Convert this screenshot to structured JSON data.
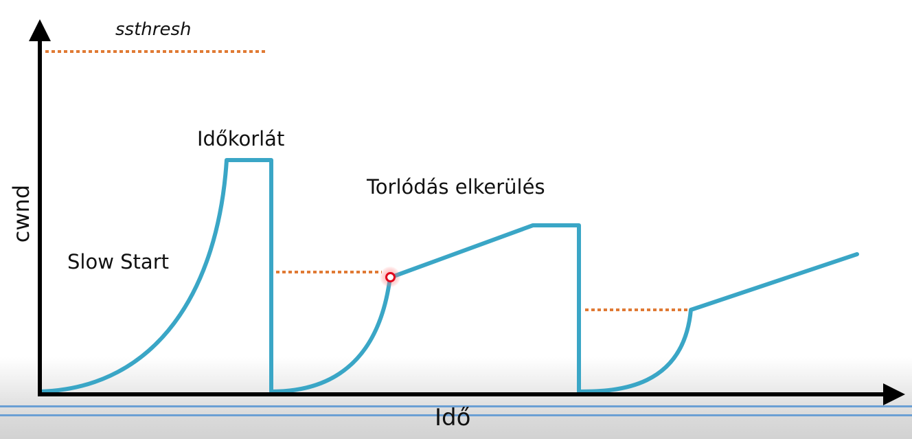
{
  "diagram": {
    "labels": {
      "ssthresh": "ssthresh",
      "timeout": "Időkorlát",
      "congestion_avoidance": "Torlódás elkerülés",
      "slow_start": "Slow Start",
      "y_axis": "cwnd",
      "x_axis": "Idő"
    },
    "colors": {
      "curve": "#3aa6c6",
      "threshold": "#e07a34",
      "axis": "#000000",
      "marker": "#e0001a",
      "rule": "#6a9fd4"
    }
  }
}
